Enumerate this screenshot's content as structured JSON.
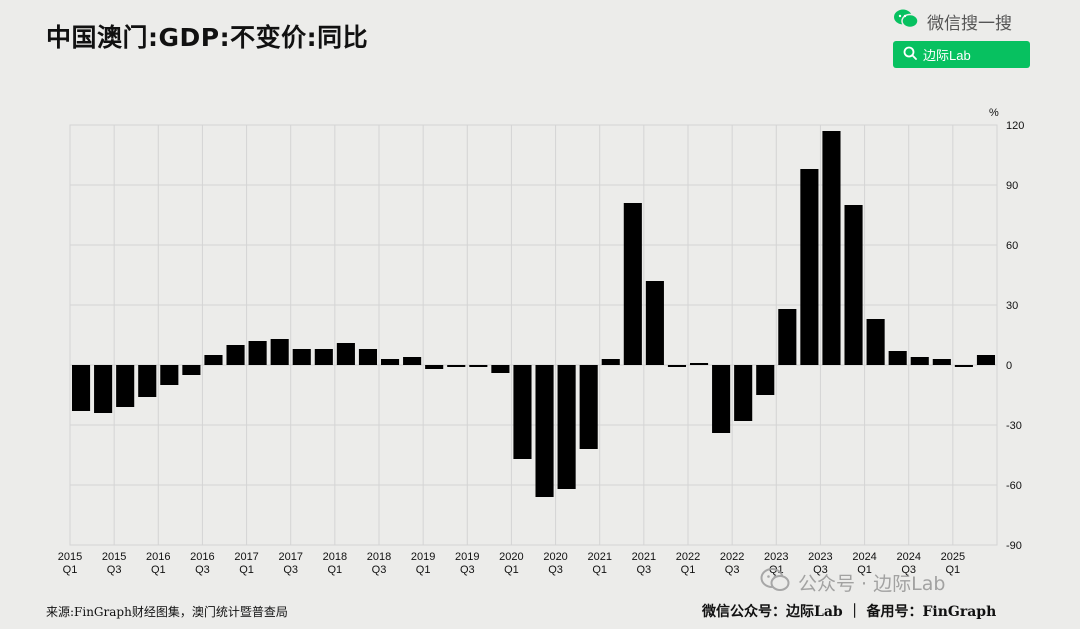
{
  "header": {
    "title": "中国澳门:GDP:不变价:同比",
    "wechat_label": "微信搜一搜",
    "search_label": "边际Lab"
  },
  "footer": {
    "source": "来源:FinGraph财经图集，澳门统计暨普查局",
    "credit": "微信公众号：边际Lab ｜ 备用号：FinGraph"
  },
  "watermark": {
    "text": "公众号 · 边际Lab"
  },
  "colors": {
    "bar": "#000000",
    "accent": "#07c160",
    "grid": "#d4d4d4",
    "background": "#ececea"
  },
  "chart_data": {
    "type": "bar",
    "title": "中国澳门:GDP:不变价:同比",
    "unit": "%",
    "ylim": [
      -90,
      120
    ],
    "yticks": [
      -90,
      -60,
      -30,
      0,
      30,
      60,
      90,
      120
    ],
    "y_axis_side": "right",
    "grid": true,
    "series": [
      {
        "values": [
          -23,
          -24,
          -21,
          -16,
          -10,
          -5,
          5,
          10,
          12,
          13,
          8,
          8,
          11,
          8,
          3,
          4,
          -2,
          -1,
          -1,
          -4,
          -47,
          -66,
          -62,
          -42,
          3,
          81,
          42,
          -1,
          1,
          -34,
          -28,
          -15,
          28,
          98,
          117,
          80,
          23,
          7,
          4,
          3,
          -1,
          5
        ]
      }
    ],
    "tick_labels": [
      {
        "year": "2015",
        "q": "Q1"
      },
      {
        "year": "2015",
        "q": "Q3"
      },
      {
        "year": "2016",
        "q": "Q1"
      },
      {
        "year": "2016",
        "q": "Q3"
      },
      {
        "year": "2017",
        "q": "Q1"
      },
      {
        "year": "2017",
        "q": "Q3"
      },
      {
        "year": "2018",
        "q": "Q1"
      },
      {
        "year": "2018",
        "q": "Q3"
      },
      {
        "year": "2019",
        "q": "Q1"
      },
      {
        "year": "2019",
        "q": "Q3"
      },
      {
        "year": "2020",
        "q": "Q1"
      },
      {
        "year": "2020",
        "q": "Q3"
      },
      {
        "year": "2021",
        "q": "Q1"
      },
      {
        "year": "2021",
        "q": "Q3"
      },
      {
        "year": "2022",
        "q": "Q1"
      },
      {
        "year": "2022",
        "q": "Q3"
      },
      {
        "year": "2023",
        "q": "Q1"
      },
      {
        "year": "2023",
        "q": "Q3"
      },
      {
        "year": "2024",
        "q": "Q1"
      },
      {
        "year": "2024",
        "q": "Q3"
      },
      {
        "year": "2025",
        "q": "Q1"
      }
    ]
  }
}
